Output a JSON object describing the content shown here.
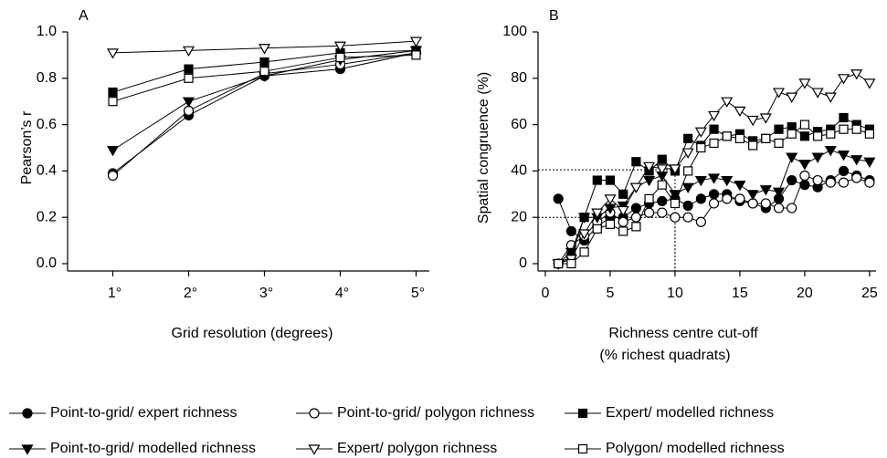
{
  "chart_data": [
    {
      "type": "line",
      "title": "A",
      "y_label": "Pearson’s r",
      "x_label": "Grid resolution (degrees)",
      "categories": [
        "1°",
        "2°",
        "3°",
        "4°",
        "5°"
      ],
      "ylim": [
        0,
        1
      ],
      "yticks": [
        {
          "value": 0,
          "label": "0.0"
        },
        0.2,
        0.4,
        0.6,
        0.8,
        {
          "value": 1,
          "label": "1.0"
        }
      ],
      "series": [
        {
          "name": "Point-to-grid/ expert richness",
          "marker": "circle",
          "filled": true,
          "values": [
            0.39,
            0.64,
            0.81,
            0.84,
            0.91
          ]
        },
        {
          "name": "Point-to-grid/ polygon richness",
          "marker": "circle",
          "filled": false,
          "values": [
            0.38,
            0.66,
            0.82,
            0.86,
            0.91
          ]
        },
        {
          "name": "Expert/ modelled richness",
          "marker": "square",
          "filled": true,
          "values": [
            0.74,
            0.84,
            0.87,
            0.91,
            0.92
          ]
        },
        {
          "name": "Point-to-grid/ modelled richness",
          "marker": "triangle",
          "filled": true,
          "values": [
            0.49,
            0.7,
            0.81,
            0.88,
            0.92
          ]
        },
        {
          "name": "Expert/ polygon richness",
          "marker": "triangle",
          "filled": false,
          "values": [
            0.91,
            0.92,
            0.93,
            0.94,
            0.96
          ]
        },
        {
          "name": "Polygon/ modelled richness",
          "marker": "square",
          "filled": false,
          "values": [
            0.7,
            0.8,
            0.83,
            0.89,
            0.9
          ]
        }
      ]
    },
    {
      "type": "line",
      "title": "B",
      "y_label": "Spatial congruence (%)",
      "x_label": [
        "Richness centre cut-off",
        "(% richest quadrats)"
      ],
      "x": [
        1,
        2,
        3,
        4,
        5,
        6,
        7,
        8,
        9,
        10,
        11,
        12,
        13,
        14,
        15,
        16,
        17,
        18,
        19,
        20,
        21,
        22,
        23,
        24,
        25
      ],
      "xlim": [
        0,
        25.5
      ],
      "xticks": [
        0,
        5,
        10,
        15,
        20,
        25
      ],
      "ylim": [
        0,
        100
      ],
      "yticks": [
        0,
        20,
        40,
        60,
        80,
        100
      ],
      "reference_lines": [
        {
          "x": 10,
          "y": 40.5
        },
        {
          "x": 10,
          "y": 20
        }
      ],
      "series": [
        {
          "marker": "circle",
          "filled": true,
          "values": [
            28,
            14,
            10,
            16,
            20,
            20,
            24,
            26,
            27,
            28,
            25,
            28,
            30,
            30,
            27,
            26,
            24,
            28,
            36,
            34,
            33,
            36,
            40,
            38,
            36
          ]
        },
        {
          "marker": "circle",
          "filled": false,
          "values": [
            0,
            8,
            12,
            18,
            22,
            18,
            20,
            22,
            22,
            20,
            20,
            18,
            26,
            28,
            28,
            26,
            26,
            24,
            24,
            38,
            36,
            35,
            35,
            37,
            35
          ]
        },
        {
          "marker": "square",
          "filled": true,
          "values": [
            0,
            3,
            20,
            36,
            36,
            30,
            44,
            40,
            45,
            40,
            54,
            51,
            58,
            55,
            56,
            53,
            54,
            58,
            59,
            55,
            57,
            58,
            63,
            60,
            58
          ]
        },
        {
          "marker": "triangle",
          "filled": true,
          "values": [
            0,
            5,
            20,
            20,
            24,
            25,
            33,
            36,
            38,
            30,
            33,
            36,
            37,
            36,
            34,
            30,
            32,
            31,
            46,
            43,
            46,
            49,
            47,
            45,
            44
          ]
        },
        {
          "marker": "triangle",
          "filled": false,
          "values": [
            0,
            2,
            13,
            22,
            28,
            23,
            33,
            42,
            41,
            41,
            48,
            57,
            64,
            70,
            66,
            62,
            63,
            74,
            72,
            78,
            74,
            72,
            80,
            82,
            78
          ]
        },
        {
          "marker": "square",
          "filled": false,
          "values": [
            0,
            0,
            5,
            15,
            17,
            14,
            16,
            28,
            34,
            26,
            40,
            50,
            52,
            55,
            54,
            51,
            54,
            52,
            56,
            60,
            55,
            56,
            58,
            58,
            56
          ]
        }
      ]
    }
  ]
}
